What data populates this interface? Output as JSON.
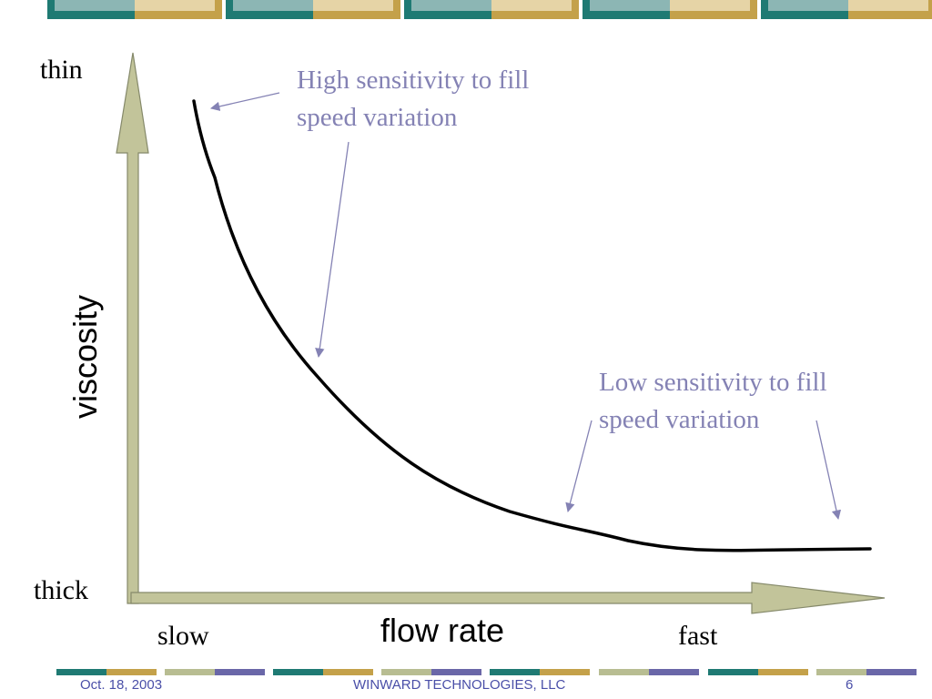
{
  "diagram": {
    "y_axis": {
      "title": "viscosity",
      "top_label": "thin",
      "bottom_label": "thick"
    },
    "x_axis": {
      "title": "flow rate",
      "left_label": "slow",
      "right_label": "fast"
    },
    "annotations": {
      "high": {
        "line1": "High sensitivity to fill",
        "line2": "speed variation"
      },
      "low": {
        "line1": "Low sensitivity to fill",
        "line2": "speed variation"
      }
    },
    "colors": {
      "axis_fill": "#c2c49a",
      "axis_stroke": "#85896a",
      "curve": "#000000",
      "annotation": "#8482b4"
    }
  },
  "footer": {
    "date": "Oct. 18, 2003",
    "company": "WINWARD TECHNOLOGIES, LLC",
    "page": "6"
  },
  "theme": {
    "teal": "#1f7a73",
    "gold": "#c4a14a",
    "sage": "#b8bd92",
    "purple": "#6a67a8",
    "footer_text": "#4a4fa8"
  }
}
